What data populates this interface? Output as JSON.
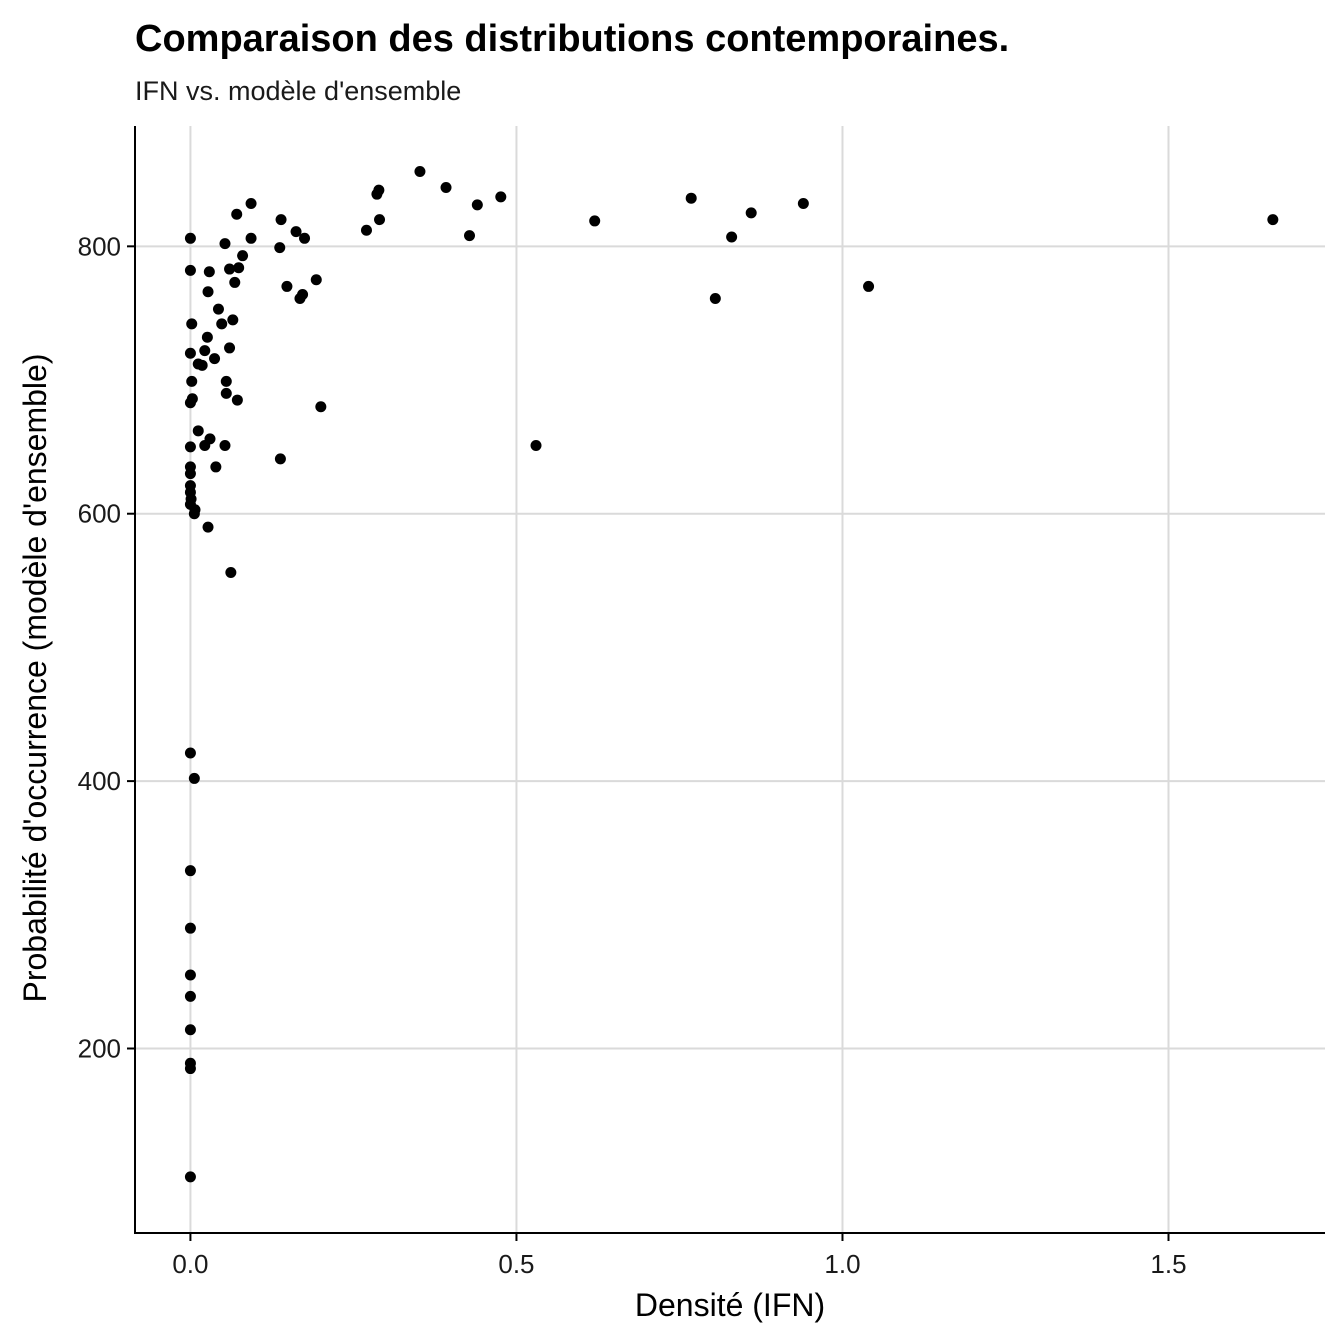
{
  "chart_data": {
    "type": "scatter",
    "title": "Comparaison des distributions contemporaines.",
    "subtitle": "IFN vs. modèle d'ensemble",
    "xlabel": "Densité (IFN)",
    "ylabel": "Probabilité d'occurrence (modèle d'ensemble)",
    "xlim": [
      -0.085,
      1.74
    ],
    "ylim": [
      62,
      890
    ],
    "x_ticks": [
      0.0,
      0.5,
      1.0,
      1.5
    ],
    "x_tick_labels": [
      "0.0",
      "0.5",
      "1.0",
      "1.5"
    ],
    "y_ticks": [
      200,
      400,
      600,
      800
    ],
    "y_tick_labels": [
      "200",
      "400",
      "600",
      "800"
    ],
    "grid": true,
    "point_color": "#000000",
    "points": [
      {
        "x": 0.0,
        "y": 104
      },
      {
        "x": 0.0,
        "y": 185
      },
      {
        "x": 0.0,
        "y": 189
      },
      {
        "x": 0.0,
        "y": 214
      },
      {
        "x": 0.0,
        "y": 239
      },
      {
        "x": 0.0,
        "y": 255
      },
      {
        "x": 0.0,
        "y": 290
      },
      {
        "x": 0.0,
        "y": 333
      },
      {
        "x": 0.006,
        "y": 402
      },
      {
        "x": 0.0,
        "y": 421
      },
      {
        "x": 0.062,
        "y": 556
      },
      {
        "x": 0.027,
        "y": 590
      },
      {
        "x": 0.006,
        "y": 600
      },
      {
        "x": 0.007,
        "y": 603
      },
      {
        "x": 0.0,
        "y": 607
      },
      {
        "x": 0.001,
        "y": 611
      },
      {
        "x": 0.0,
        "y": 616
      },
      {
        "x": 0.0,
        "y": 621
      },
      {
        "x": 0.0,
        "y": 630
      },
      {
        "x": 0.0,
        "y": 635
      },
      {
        "x": 0.039,
        "y": 635
      },
      {
        "x": 0.138,
        "y": 641
      },
      {
        "x": 0.0,
        "y": 650
      },
      {
        "x": 0.022,
        "y": 651
      },
      {
        "x": 0.053,
        "y": 651
      },
      {
        "x": 0.53,
        "y": 651
      },
      {
        "x": 0.03,
        "y": 656
      },
      {
        "x": 0.012,
        "y": 662
      },
      {
        "x": 0.2,
        "y": 680
      },
      {
        "x": 0.0,
        "y": 683
      },
      {
        "x": 0.003,
        "y": 686
      },
      {
        "x": 0.072,
        "y": 685
      },
      {
        "x": 0.055,
        "y": 690
      },
      {
        "x": 0.055,
        "y": 699
      },
      {
        "x": 0.002,
        "y": 699
      },
      {
        "x": 0.012,
        "y": 712
      },
      {
        "x": 0.018,
        "y": 711
      },
      {
        "x": 0.037,
        "y": 716
      },
      {
        "x": 0.0,
        "y": 720
      },
      {
        "x": 0.022,
        "y": 722
      },
      {
        "x": 0.06,
        "y": 724
      },
      {
        "x": 0.026,
        "y": 732
      },
      {
        "x": 0.002,
        "y": 742
      },
      {
        "x": 0.048,
        "y": 742
      },
      {
        "x": 0.065,
        "y": 745
      },
      {
        "x": 0.043,
        "y": 753
      },
      {
        "x": 0.168,
        "y": 761
      },
      {
        "x": 0.805,
        "y": 761
      },
      {
        "x": 0.172,
        "y": 764
      },
      {
        "x": 0.027,
        "y": 766
      },
      {
        "x": 0.148,
        "y": 770
      },
      {
        "x": 1.04,
        "y": 770
      },
      {
        "x": 0.068,
        "y": 773
      },
      {
        "x": 0.193,
        "y": 775
      },
      {
        "x": 0.029,
        "y": 781
      },
      {
        "x": 0.0,
        "y": 782
      },
      {
        "x": 0.06,
        "y": 783
      },
      {
        "x": 0.074,
        "y": 784
      },
      {
        "x": 0.08,
        "y": 793
      },
      {
        "x": 0.137,
        "y": 799
      },
      {
        "x": 0.053,
        "y": 802
      },
      {
        "x": 0.0,
        "y": 806
      },
      {
        "x": 0.093,
        "y": 806
      },
      {
        "x": 0.175,
        "y": 806
      },
      {
        "x": 0.83,
        "y": 807
      },
      {
        "x": 0.428,
        "y": 808
      },
      {
        "x": 0.162,
        "y": 811
      },
      {
        "x": 0.27,
        "y": 812
      },
      {
        "x": 0.62,
        "y": 819
      },
      {
        "x": 0.29,
        "y": 820
      },
      {
        "x": 0.139,
        "y": 820
      },
      {
        "x": 1.66,
        "y": 820
      },
      {
        "x": 0.071,
        "y": 824
      },
      {
        "x": 0.86,
        "y": 825
      },
      {
        "x": 0.44,
        "y": 831
      },
      {
        "x": 0.093,
        "y": 832
      },
      {
        "x": 0.94,
        "y": 832
      },
      {
        "x": 0.768,
        "y": 836
      },
      {
        "x": 0.476,
        "y": 837
      },
      {
        "x": 0.286,
        "y": 839
      },
      {
        "x": 0.289,
        "y": 842
      },
      {
        "x": 0.392,
        "y": 844
      },
      {
        "x": 0.352,
        "y": 856
      }
    ]
  }
}
